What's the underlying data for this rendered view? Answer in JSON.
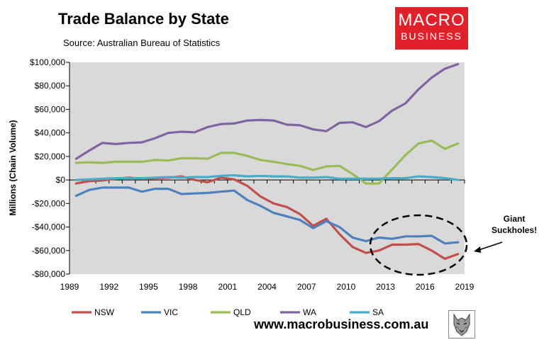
{
  "header": {
    "title": "Trade Balance by State",
    "source": "Source: Australian Bureau of Statistics"
  },
  "logo": {
    "line1": "MACRO",
    "line2": "BUSINESS"
  },
  "footer": {
    "website": "www.macrobusiness.com.au"
  },
  "annotation": {
    "line1": "Giant",
    "line2": "Suckholes!"
  },
  "colors": {
    "plot_bg": "#d9d9d9",
    "NSW": "#c0504d",
    "VIC": "#4f81bd",
    "QLD": "#9bbb59",
    "WA": "#8064a2",
    "SA": "#4bacc6",
    "logo_bg": "#e0202a"
  },
  "chart_data": {
    "type": "line",
    "title": "Trade Balance by State",
    "subtitle": "Source: Australian Bureau of Statistics",
    "xlabel": "",
    "ylabel": "Millions (Chain Volume)",
    "xlim": [
      1989,
      2019
    ],
    "ylim": [
      -80000,
      100000
    ],
    "x_ticks": [
      1989,
      1992,
      1995,
      1998,
      2001,
      2004,
      2007,
      2010,
      2013,
      2016,
      2019
    ],
    "y_ticks": [
      100000,
      80000,
      60000,
      40000,
      20000,
      0,
      -20000,
      -40000,
      -60000,
      -80000
    ],
    "y_tick_labels": [
      "$100,000",
      "$80,000",
      "$60,000",
      "$40,000",
      "$20,000",
      "$0",
      "-$20,000",
      "-$40,000",
      "-$60,000",
      "-$80,000"
    ],
    "grid": false,
    "legend_position": "bottom",
    "x": [
      1989.5,
      1990.5,
      1991.5,
      1992.5,
      1993.5,
      1994.5,
      1995.5,
      1996.5,
      1997.5,
      1998.5,
      1999.5,
      2000.5,
      2001.5,
      2002.5,
      2003.5,
      2004.5,
      2005.5,
      2006.5,
      2007.5,
      2008.5,
      2009.5,
      2010.5,
      2011.5,
      2012.5,
      2013.5,
      2014.5,
      2015.5,
      2016.5,
      2017.5,
      2018.5
    ],
    "series": [
      {
        "name": "NSW",
        "values": [
          -3000,
          -1000,
          -500,
          1000,
          2000,
          1000,
          1500,
          2000,
          3000,
          0,
          -2000,
          2000,
          500,
          -5000,
          -14000,
          -20000,
          -23000,
          -29000,
          -39000,
          -33000,
          -46000,
          -57000,
          -62000,
          -60000,
          -55000,
          -55000,
          -54500,
          -60000,
          -67000,
          -63000
        ]
      },
      {
        "name": "VIC",
        "values": [
          -13500,
          -8500,
          -6500,
          -6500,
          -6500,
          -10000,
          -7500,
          -7500,
          -12000,
          -11500,
          -11000,
          -10000,
          -9000,
          -17000,
          -22000,
          -28000,
          -31000,
          -34000,
          -41000,
          -35000,
          -40000,
          -49000,
          -52000,
          -49000,
          -50000,
          -48000,
          -48000,
          -47500,
          -54000,
          -53000
        ]
      },
      {
        "name": "QLD",
        "values": [
          14500,
          15000,
          14500,
          15500,
          15500,
          15500,
          17000,
          16500,
          18500,
          18500,
          18000,
          23000,
          23000,
          20500,
          17000,
          15500,
          13500,
          12000,
          8500,
          11500,
          12000,
          5000,
          -3000,
          -3000,
          9000,
          21000,
          31000,
          33500,
          26500,
          31000
        ]
      },
      {
        "name": "WA",
        "values": [
          18000,
          25000,
          31500,
          30500,
          31500,
          32000,
          35500,
          40000,
          41000,
          40500,
          45000,
          47500,
          48000,
          50500,
          51000,
          50500,
          47000,
          46500,
          43000,
          41500,
          48500,
          49000,
          45000,
          50000,
          59000,
          65000,
          77000,
          87000,
          94500,
          98500
        ]
      },
      {
        "name": "SA",
        "values": [
          0,
          500,
          1000,
          1500,
          1500,
          1500,
          2000,
          2500,
          2000,
          2500,
          2500,
          3500,
          4000,
          3000,
          3500,
          3000,
          3000,
          2000,
          2000,
          2500,
          1000,
          1000,
          1000,
          1000,
          1500,
          1500,
          3000,
          2500,
          1500,
          0
        ]
      }
    ]
  }
}
